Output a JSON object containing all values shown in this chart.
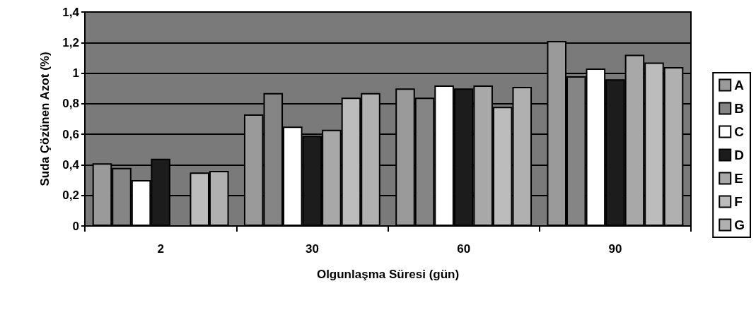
{
  "chart_data": {
    "type": "bar",
    "xlabel": "Olgunlaşma Süresi (gün)",
    "ylabel": "Suda Çözünen Azot (%)",
    "categories": [
      "2",
      "30",
      "60",
      "90"
    ],
    "series": [
      {
        "name": "A",
        "color": "#9a9a9a",
        "values": [
          0.41,
          0.73,
          0.9,
          1.21
        ]
      },
      {
        "name": "B",
        "color": "#858585",
        "values": [
          0.38,
          0.87,
          0.84,
          0.98
        ]
      },
      {
        "name": "C",
        "color": "#ffffff",
        "values": [
          0.3,
          0.65,
          0.92,
          1.03
        ]
      },
      {
        "name": "D",
        "color": "#1c1c1c",
        "values": [
          0.44,
          0.59,
          0.9,
          0.96
        ]
      },
      {
        "name": "E",
        "color": "#a8a8a8",
        "values": [
          null,
          0.63,
          0.92,
          1.12
        ]
      },
      {
        "name": "F",
        "color": "#bcbcbc",
        "values": [
          0.35,
          0.84,
          0.78,
          1.07
        ]
      },
      {
        "name": "G",
        "color": "#b0b0b0",
        "values": [
          0.36,
          0.87,
          0.91,
          1.04
        ]
      }
    ],
    "ylim": [
      0,
      1.4
    ],
    "yticks": [
      0,
      {
        "value": 0.2,
        "label": "0,2"
      },
      {
        "value": 0.4,
        "label": "0,4"
      },
      {
        "value": 0.6,
        "label": "0,6"
      },
      {
        "value": 0.8,
        "label": "0,8"
      },
      1,
      {
        "value": 1.2,
        "label": "1,2"
      },
      {
        "value": 1.4,
        "label": "1,4"
      }
    ],
    "grid": "y",
    "legend": "right"
  }
}
